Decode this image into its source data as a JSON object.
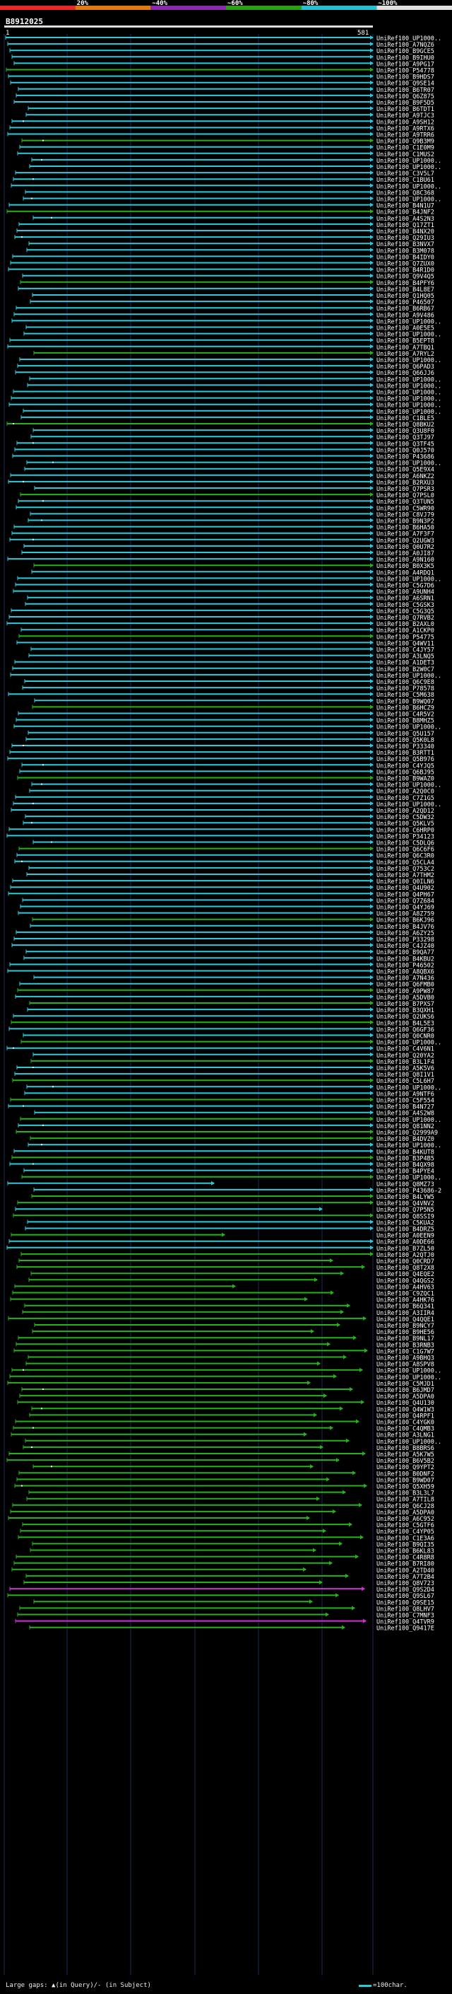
{
  "legend": {
    "segments": [
      {
        "label": "",
        "color": "#e8282a"
      },
      {
        "label": "20%",
        "color": "#e07b10"
      },
      {
        "label": "~40%",
        "color": "#8a2ab0"
      },
      {
        "label": "~60%",
        "color": "#2aa012"
      },
      {
        "label": "~80%",
        "color": "#26c0d0"
      },
      {
        "label": "~100%",
        "color": "#e0e0e0"
      }
    ]
  },
  "view": {
    "title": "B8912025",
    "ruler_start": "1",
    "ruler_end": "581"
  },
  "hit_colors": {
    "cyan": "#2dc9d8",
    "green": "#27b11c",
    "magenta": "#d02fd8",
    "white": "#ffffff"
  },
  "hits": [
    "UniRef100_UP1000..",
    "UniRef100_A7NQZ6",
    "UniRef100_B9GCE5",
    "UniRef100_B9IHU0",
    "UniRef100_A9PG17",
    "UniRef100_P54778",
    "UniRef100_B9HDS7",
    "UniRef100_Q9SE14",
    "UniRef100_B6TR07",
    "UniRef100_Q6Z875",
    "UniRef100_B9F5D5",
    "UniRef100_B6TDT1",
    "UniRef100_A9TJC3",
    "UniRef100_A9SH12",
    "UniRef100_A9RTX6",
    "UniRef100_A9TRR6",
    "UniRef100_Q9B3M9",
    "UniRef100_C1E0M9",
    "UniRef100_C1MUS2",
    "UniRef100_UP1000..",
    "UniRef100_UP1000..",
    "UniRef100_C3V5L7",
    "UniRef100_C1BU61",
    "UniRef100_UP1000..",
    "UniRef100_Q8C368",
    "UniRef100_UP1000..",
    "UniRef100_B4N1U7",
    "UniRef100_B4JNF2",
    "UniRef100_A4S2N3",
    "UniRef100_Q17ZT1",
    "UniRef100_B4NX20",
    "UniRef100_Q29IU3",
    "UniRef100_B3NVX7",
    "UniRef100_B3M078",
    "UniRef100_B4IDY0",
    "UniRef100_Q7ZUX0",
    "UniRef100_B4R1D0",
    "UniRef100_Q9V4Q5",
    "UniRef100_B4PFY6",
    "UniRef100_B4L8E7",
    "UniRef100_Q1HQ05",
    "UniRef100_P46507",
    "UniRef100_B6RB67",
    "UniRef100_A9V486",
    "UniRef100_UP1000..",
    "UniRef100_A0E5E5",
    "UniRef100_UP1000..",
    "UniRef100_B5EPT8",
    "UniRef100_A7TBQ1",
    "UniRef100_A7RYL2",
    "UniRef100_UP1000..",
    "UniRef100_Q6PAD3",
    "UniRef100_Q66JJ6",
    "UniRef100_UP1000..",
    "UniRef100_UP1000..",
    "UniRef100_UP1000..",
    "UniRef100_UP1000..",
    "UniRef100_UP1000..",
    "UniRef100_UP1000..",
    "UniRef100_C1BLE5",
    "UniRef100_Q8BKU2",
    "UniRef100_Q3U8F0",
    "UniRef100_Q3TJ97",
    "UniRef100_Q3TF45",
    "UniRef100_Q0J570",
    "UniRef100_P43686",
    "UniRef100_UP1000..",
    "UniRef100_Q5E9X4",
    "UniRef100_A6NKZ2",
    "UniRef100_B2RXU3",
    "UniRef100_Q7PSR3",
    "UniRef100_Q7PSL0",
    "UniRef100_Q3TUN5",
    "UniRef100_C5WR90",
    "UniRef100_C8VJ79",
    "UniRef100_B9N3P2",
    "UniRef100_B6HA50",
    "UniRef100_A7F3F7",
    "UniRef100_Q2UGW3",
    "UniRef100_Q0U7R2",
    "UniRef100_A0JI87",
    "UniRef100_A9N160",
    "UniRef100_B0X3K5",
    "UniRef100_A4RDQ1",
    "UniRef100_UP1000..",
    "UniRef100_C5G7D6",
    "UniRef100_A9UNH4",
    "UniRef100_A6SRN1",
    "UniRef100_C5GSK3",
    "UniRef100_C5G3Q5",
    "UniRef100_Q7RVB2",
    "UniRef100_B2AXL0",
    "UniRef100_A1CKP0",
    "UniRef100_P54775",
    "UniRef100_Q4WV11",
    "UniRef100_C4JY57",
    "UniRef100_A3LNQ5",
    "UniRef100_A1DET3",
    "UniRef100_B2W0C7",
    "UniRef100_UP1000..",
    "UniRef100_Q6C9E8",
    "UniRef100_P78578",
    "UniRef100_C5M638",
    "UniRef100_B9WQ07",
    "UniRef100_B6HCZ9",
    "UniRef100_C4R5V2",
    "UniRef100_B8MHZ5",
    "UniRef100_UP1000..",
    "UniRef100_Q5U157",
    "UniRef100_Q5K0L8",
    "UniRef100_P33340",
    "UniRef100_B3RTT1",
    "UniRef100_Q5B976",
    "UniRef100_C4YJQ5",
    "UniRef100_Q6BJ95",
    "UniRef100_B9WAZ0",
    "UniRef100_UP1000..",
    "UniRef100_A2Q0C0",
    "UniRef100_C7Z1G5",
    "UniRef100_UP1000..",
    "UniRef100_A2QD12",
    "UniRef100_C5DW32",
    "UniRef100_Q5KLV5",
    "UniRef100_C6HRP0",
    "UniRef100_P34123",
    "UniRef100_C5DLQ6",
    "UniRef100_Q6C6F6",
    "UniRef100_Q6C3R0",
    "UniRef100_Q5CLA4",
    "UniRef100_Q753C2",
    "UniRef100_A7THM2",
    "UniRef100_Q0ILN6",
    "UniRef100_Q4U902",
    "UniRef100_Q4PH67",
    "UniRef100_Q7Z684",
    "UniRef100_Q4YJ69",
    "UniRef100_A8Z759",
    "UniRef100_B6KJ96",
    "UniRef100_B4JV76",
    "UniRef100_A6ZY25",
    "UniRef100_P33298",
    "UniRef100_C4JZ40",
    "UniRef100_B9QA77",
    "UniRef100_B4KBU2",
    "UniRef100_P46502",
    "UniRef100_A8QBX6",
    "UniRef100_A7N436",
    "UniRef100_Q6FMB0",
    "UniRef100_A9PW87",
    "UniRef100_A5DVB0",
    "UniRef100_B7PXS7",
    "UniRef100_B3QXH1",
    "UniRef100_Q2UKS6",
    "UniRef100_B4L5E3",
    "UniRef100_Q6GF36",
    "UniRef100_Q0CNR0",
    "UniRef100_UP1000..",
    "UniRef100_C4V6N1",
    "UniRef100_Q20YA2",
    "UniRef100_B3L1F4",
    "UniRef100_A5K5V6",
    "UniRef100_Q8I1V1",
    "UniRef100_C5L6H7",
    "UniRef100_UP1000..",
    "UniRef100_A9NTF6",
    "UniRef100_C5F554",
    "UniRef100_B4N727",
    "UniRef100_A4S2W8",
    "UniRef100_UP1000..",
    "UniRef100_Q81NN2",
    "UniRef100_Q2999A9",
    "UniRef100_B4DVZ0",
    "UniRef100_UP1000..",
    "UniRef100_B4KUT8",
    "UniRef100_B3P4B5",
    "UniRef100_B4QX98",
    "UniRef100_B4PYE4",
    "UniRef100_UP1000..",
    "UniRef100_Q8MZ73",
    "UniRef100_P43686-2",
    "UniRef100_B4LYW5",
    "UniRef100_Q4VNV2",
    "UniRef100_Q7P5N5",
    "UniRef100_Q8SSI9",
    "UniRef100_C5KUA2",
    "UniRef100_B4DRZ5",
    "UniRef100_A0EEN9",
    "UniRef100_A0DE66",
    "UniRef100_B7ZL50",
    "UniRef100_A2QTJ0",
    "UniRef100_Q0CRD7",
    "UniRef100_Q8T2X8",
    "UniRef100_Q4EQE2",
    "UniRef100_Q4QGS2",
    "UniRef100_A4HV63",
    "UniRef100_C9ZQC1",
    "UniRef100_A4HK76",
    "UniRef100_B6Q341",
    "UniRef100_A3IIR4",
    "UniRef100_Q4QQE1",
    "UniRef100_B9NCY7",
    "UniRef100_B9HE56",
    "UniRef100_B9NL17",
    "UniRef100_B3RNB3",
    "UniRef100_C1G7W7",
    "UniRef100_A9BHQ3",
    "UniRef100_A8SPV8",
    "UniRef100_UP1000..",
    "UniRef100_UP1000..",
    "UniRef100_C5MJD1",
    "UniRef100_B6JMD7",
    "UniRef100_A5DPA0",
    "UniRef100_Q4U130",
    "UniRef100_Q4W1W3",
    "UniRef100_Q4RPF1",
    "UniRef100_C4YGK0",
    "UniRef100_C4QMB3",
    "UniRef100_A3LNG1",
    "UniRef100_UP1000..",
    "UniRef100_B8BRS6",
    "UniRef100_A5K7W5",
    "UniRef100_B6V5B2",
    "UniRef100_Q9YPT2",
    "UniRef100_B0DNF2",
    "UniRef100_B9WD07",
    "UniRef100_Q5XH59",
    "UniRef100_B3L3L7",
    "UniRef100_A7TIL8",
    "UniRef100_Q6CJ28",
    "UniRef100_A5DPA0",
    "UniRef100_A6C952",
    "UniRef100_C5GTF6",
    "UniRef100_C4YP05",
    "UniRef100_C1E3A6",
    "UniRef100_B9QI35",
    "UniRef100_B6KL83",
    "UniRef100_C4R8R8",
    "UniRef100_B7RI80",
    "UniRef100_A2TD40",
    "UniRef100_A7T2B4",
    "UniRef100_Q8V723",
    "UniRef100_Q9S2D4",
    "UniRef100_Q9SL67",
    "UniRef100_Q9SE15",
    "UniRef100_Q8LHV7",
    "UniRef100_C7MNF3",
    "UniRef100_Q4TVR9",
    "UniRef100_Q9417E"
  ],
  "footer": {
    "gap_text": "Large gaps: ▲(in Query)/- (in Subject)",
    "scale_text": "=100char."
  }
}
